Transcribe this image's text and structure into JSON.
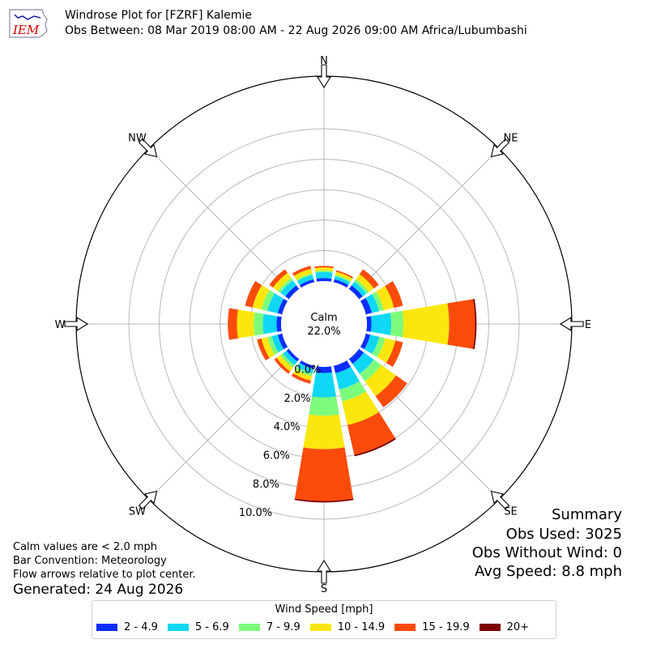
{
  "header": {
    "logo_text": "IEM",
    "title": "Windrose Plot for [FZRF] Kalemie",
    "subtitle": "Obs Between: 08 Mar 2019 08:00 AM - 22 Aug 2026 09:00 AM Africa/Lubumbashi"
  },
  "chart_data": {
    "type": "windrose",
    "directions": [
      "N",
      "NNE",
      "NE",
      "ENE",
      "E",
      "ESE",
      "SE",
      "SSE",
      "S",
      "SSW",
      "SW",
      "WSW",
      "W",
      "WNW",
      "NW",
      "NNW"
    ],
    "direction_labels": [
      {
        "label": "N",
        "deg": 0
      },
      {
        "label": "NE",
        "deg": 45
      },
      {
        "label": "E",
        "deg": 90
      },
      {
        "label": "SE",
        "deg": 135
      },
      {
        "label": "S",
        "deg": 180
      },
      {
        "label": "SW",
        "deg": 225
      },
      {
        "label": "W",
        "deg": 270
      },
      {
        "label": "NW",
        "deg": 315
      }
    ],
    "calm_label": "Calm",
    "calm_percent": "22.0%",
    "radial_ticks": [
      "0.0%",
      "2.0%",
      "4.0%",
      "6.0%",
      "8.0%",
      "10.0%"
    ],
    "radial_max": 12,
    "speed_bins": [
      "2 - 4.9",
      "5 - 6.9",
      "7 - 9.9",
      "10 - 14.9",
      "15 - 19.9",
      "20+"
    ],
    "bin_colors": [
      "#0a2dfb",
      "#0fd7f6",
      "#7dfc7c",
      "#fbe70e",
      "#fb4b0a",
      "#7c0000"
    ],
    "series": [
      {
        "direction": "N",
        "values": [
          0.2,
          0.4,
          0.1,
          0.2,
          0.1,
          0.0
        ]
      },
      {
        "direction": "NNE",
        "values": [
          0.2,
          0.2,
          0.1,
          0.2,
          0.1,
          0.0
        ]
      },
      {
        "direction": "NE",
        "values": [
          0.3,
          0.3,
          0.2,
          0.4,
          0.4,
          0.0
        ]
      },
      {
        "direction": "ENE",
        "values": [
          0.4,
          0.5,
          0.3,
          0.7,
          0.6,
          0.0
        ]
      },
      {
        "direction": "E",
        "values": [
          0.3,
          1.3,
          0.8,
          3.0,
          1.7,
          0.1
        ]
      },
      {
        "direction": "ESE",
        "values": [
          0.3,
          0.6,
          0.4,
          0.7,
          0.5,
          0.0
        ]
      },
      {
        "direction": "SE",
        "values": [
          0.4,
          0.8,
          0.6,
          1.2,
          0.9,
          0.0
        ]
      },
      {
        "direction": "SSE",
        "values": [
          0.5,
          1.1,
          0.8,
          1.6,
          2.0,
          0.1
        ]
      },
      {
        "direction": "S",
        "values": [
          0.4,
          1.6,
          1.2,
          2.2,
          3.4,
          0.1
        ]
      },
      {
        "direction": "SSW",
        "values": [
          0.2,
          0.3,
          0.2,
          0.3,
          0.2,
          0.0
        ]
      },
      {
        "direction": "SW",
        "values": [
          0.2,
          0.3,
          0.2,
          0.3,
          0.2,
          0.0
        ]
      },
      {
        "direction": "WSW",
        "values": [
          0.3,
          0.4,
          0.3,
          0.4,
          0.3,
          0.0
        ]
      },
      {
        "direction": "W",
        "values": [
          0.3,
          0.9,
          0.6,
          1.1,
          0.6,
          0.0
        ]
      },
      {
        "direction": "WNW",
        "values": [
          0.3,
          0.7,
          0.4,
          0.6,
          0.5,
          0.0
        ]
      },
      {
        "direction": "NW",
        "values": [
          0.3,
          0.4,
          0.2,
          0.4,
          0.3,
          0.0
        ]
      },
      {
        "direction": "NNW",
        "values": [
          0.2,
          0.3,
          0.1,
          0.3,
          0.2,
          0.0
        ]
      }
    ]
  },
  "summary": {
    "title": "Summary",
    "obs_used": "Obs Used: 3025",
    "obs_without_wind": "Obs Without Wind: 0",
    "avg_speed": "Avg Speed: 8.8 mph"
  },
  "notes": {
    "calm": "Calm values are < 2.0 mph",
    "bar_convention": "Bar Convention: Meteorology",
    "flow": "Flow arrows relative to plot center.",
    "generated": "Generated: 24 Aug 2026"
  },
  "legend": {
    "title": "Wind Speed [mph]"
  }
}
